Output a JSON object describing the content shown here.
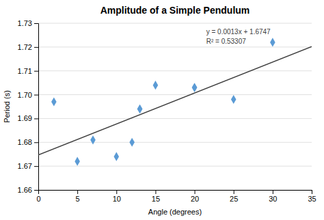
{
  "chart_data": {
    "type": "scatter",
    "title": "Amplitude of a Simple Pendulum",
    "xlabel": "Angle (degrees)",
    "ylabel": "Period (s)",
    "series": [
      {
        "type": "scatter",
        "color": "#5b9bd5",
        "marker": "diamond",
        "x": [
          2,
          5,
          7,
          10,
          12,
          13,
          13,
          15,
          20,
          20,
          25,
          30
        ],
        "values": [
          1.697,
          1.672,
          1.681,
          1.674,
          1.68,
          1.694,
          1.694,
          1.704,
          1.703,
          1.703,
          1.698,
          1.722
        ]
      },
      {
        "type": "line",
        "color": "#404040",
        "line_style": "solid",
        "x": [
          0,
          35
        ],
        "values": [
          1.6747,
          1.7202
        ]
      }
    ],
    "annotations": [
      {
        "text": "y = 0.0013x + 1.6747\nR² = 0.53307",
        "x": 21.5,
        "y": 1.728
      }
    ],
    "xlim": [
      0,
      35
    ],
    "ylim": [
      1.66,
      1.73
    ],
    "xticks": [
      0,
      5,
      10,
      15,
      20,
      25,
      30,
      35
    ],
    "yticks": [
      1.66,
      1.67,
      1.68,
      1.69,
      {
        "value": 1.7,
        "label": "1.70"
      },
      1.71,
      1.72,
      1.73
    ],
    "grid": true
  }
}
